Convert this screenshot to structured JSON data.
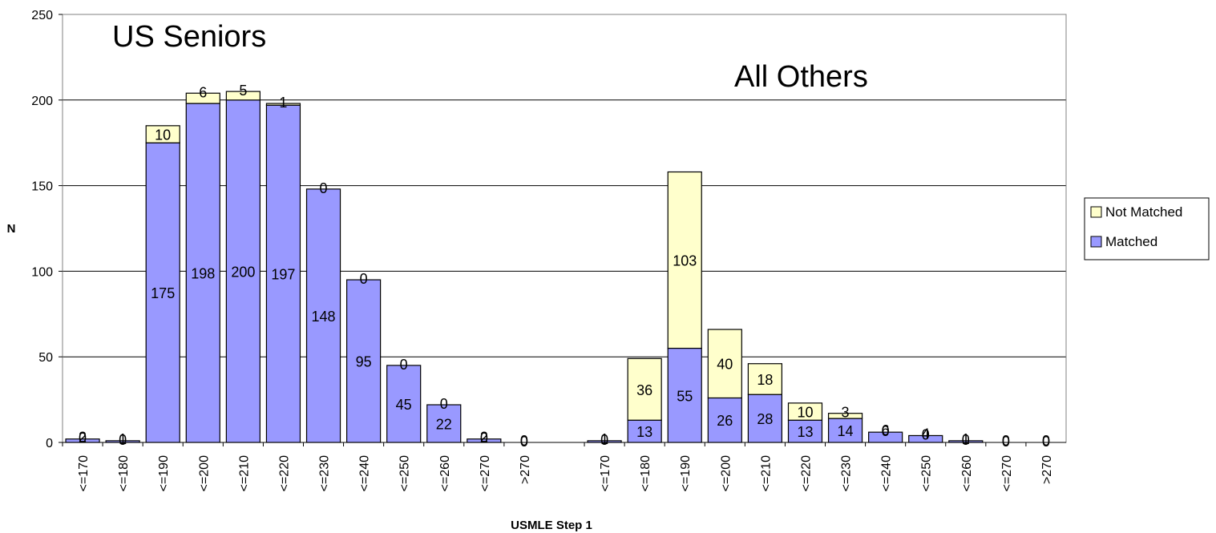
{
  "chart_data": {
    "type": "bar",
    "stacked": true,
    "xlabel": "USMLE Step 1",
    "ylabel": "N",
    "ylim": [
      0,
      250
    ],
    "yticks": [
      0,
      50,
      100,
      150,
      200,
      250
    ],
    "grid": true,
    "legend_position": "right",
    "groups": [
      {
        "label": "US Seniors",
        "categories": [
          "<=170",
          "<=180",
          "<=190",
          "<=200",
          "<=210",
          "<=220",
          "<=230",
          "<=240",
          "<=250",
          "<=260",
          "<=270",
          ">270"
        ],
        "series": [
          {
            "name": "Matched",
            "values": [
              2,
              1,
              175,
              198,
              200,
              197,
              148,
              95,
              45,
              22,
              2,
              0
            ]
          },
          {
            "name": "Not Matched",
            "values": [
              0,
              0,
              10,
              6,
              5,
              1,
              0,
              0,
              0,
              0,
              0,
              0
            ]
          }
        ]
      },
      {
        "label": "All Others",
        "categories": [
          "<=170",
          "<=180",
          "<=190",
          "<=200",
          "<=210",
          "<=220",
          "<=230",
          "<=240",
          "<=250",
          "<=260",
          "<=270",
          ">270"
        ],
        "series": [
          {
            "name": "Matched",
            "values": [
              1,
              13,
              55,
              26,
              28,
              13,
              14,
              6,
              4,
              1,
              0,
              0
            ]
          },
          {
            "name": "Not Matched",
            "values": [
              0,
              36,
              103,
              40,
              18,
              10,
              3,
              0,
              0,
              0,
              0,
              0
            ]
          }
        ]
      }
    ],
    "colors": {
      "Matched": "#9999ff",
      "Not Matched": "#ffffcc",
      "outline": "#000000",
      "grid": "#000000"
    },
    "legend": [
      "Not Matched",
      "Matched"
    ]
  }
}
